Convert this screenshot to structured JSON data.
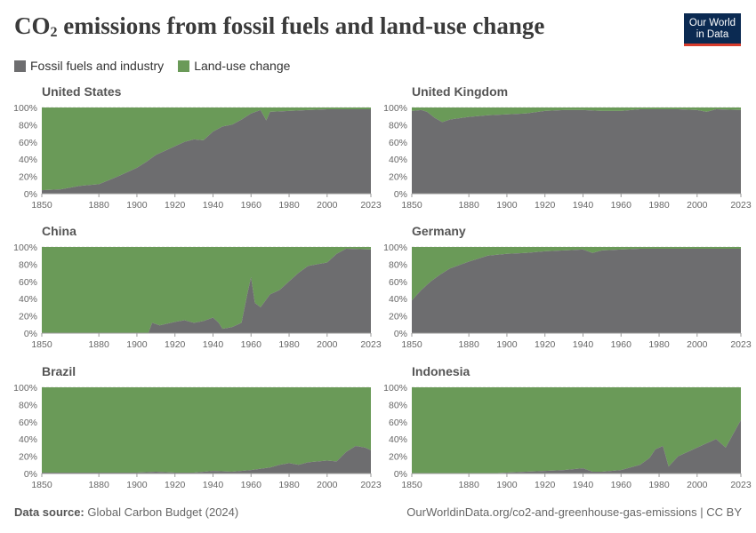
{
  "header": {
    "title_main": "CO",
    "title_sub": "2",
    "title_rest": " emissions from fossil fuels and land-use change",
    "logo_line1": "Our World",
    "logo_line2": "in Data"
  },
  "legend": [
    {
      "label": "Fossil fuels and industry",
      "color": "#6d6d6f"
    },
    {
      "label": "Land-use change",
      "color": "#6a9a58"
    }
  ],
  "footer": {
    "source_label": "Data source:",
    "source_text": "Global Carbon Budget (2024)",
    "url": "OurWorldinData.org/co2-and-greenhouse-gas-emissions | CC BY"
  },
  "chart_data": [
    {
      "type": "area",
      "title": "United States",
      "x": [
        1850,
        1860,
        1870,
        1875,
        1880,
        1890,
        1900,
        1905,
        1910,
        1915,
        1920,
        1925,
        1930,
        1935,
        1940,
        1945,
        1950,
        1955,
        1960,
        1965,
        1968,
        1970,
        1980,
        1990,
        2000,
        2010,
        2023
      ],
      "series": [
        {
          "name": "Fossil fuels and industry",
          "values": [
            4,
            5,
            9,
            10,
            11,
            20,
            30,
            37,
            45,
            50,
            55,
            60,
            63,
            62,
            72,
            78,
            80,
            86,
            93,
            97,
            85,
            95,
            96,
            97,
            98,
            98,
            98
          ]
        },
        {
          "name": "Land-use change",
          "values": [
            96,
            95,
            91,
            90,
            89,
            80,
            70,
            63,
            55,
            50,
            45,
            40,
            37,
            38,
            28,
            22,
            20,
            14,
            7,
            3,
            15,
            5,
            4,
            3,
            2,
            2,
            2
          ]
        }
      ],
      "x_ticks": [
        "1850",
        "1880",
        "1900",
        "1920",
        "1940",
        "1960",
        "1980",
        "2000",
        "2023"
      ],
      "y_ticks": [
        "0%",
        "20%",
        "40%",
        "60%",
        "80%",
        "100%"
      ],
      "ylim": [
        0,
        100
      ]
    },
    {
      "type": "area",
      "title": "United Kingdom",
      "x": [
        1850,
        1855,
        1858,
        1862,
        1866,
        1870,
        1880,
        1890,
        1900,
        1910,
        1920,
        1930,
        1940,
        1950,
        1960,
        1970,
        1980,
        1990,
        2000,
        2005,
        2010,
        2023
      ],
      "series": [
        {
          "name": "Fossil fuels and industry",
          "values": [
            96,
            97,
            95,
            88,
            83,
            86,
            89,
            91,
            92,
            93,
            96,
            97,
            97,
            96,
            96,
            98,
            98,
            98,
            97,
            95,
            98,
            97
          ]
        },
        {
          "name": "Land-use change",
          "values": [
            4,
            3,
            5,
            12,
            17,
            14,
            11,
            9,
            8,
            7,
            4,
            3,
            3,
            4,
            4,
            2,
            2,
            2,
            3,
            5,
            2,
            3
          ]
        }
      ],
      "x_ticks": [
        "1850",
        "1880",
        "1900",
        "1920",
        "1940",
        "1960",
        "1980",
        "2000",
        "2023"
      ],
      "y_ticks": [
        "0%",
        "20%",
        "40%",
        "60%",
        "80%",
        "100%"
      ],
      "ylim": [
        0,
        100
      ]
    },
    {
      "type": "area",
      "title": "China",
      "x": [
        1850,
        1900,
        1906,
        1908,
        1912,
        1920,
        1925,
        1930,
        1935,
        1940,
        1943,
        1945,
        1950,
        1955,
        1958,
        1960,
        1962,
        1965,
        1970,
        1975,
        1980,
        1985,
        1990,
        2000,
        2005,
        2010,
        2023
      ],
      "series": [
        {
          "name": "Fossil fuels and industry",
          "values": [
            0,
            0,
            0,
            12,
            9,
            13,
            15,
            12,
            14,
            18,
            12,
            5,
            7,
            12,
            45,
            65,
            35,
            30,
            45,
            50,
            60,
            70,
            78,
            82,
            92,
            98,
            97
          ]
        },
        {
          "name": "Land-use change",
          "values": [
            100,
            100,
            100,
            88,
            91,
            87,
            85,
            88,
            86,
            82,
            88,
            95,
            93,
            88,
            55,
            35,
            65,
            70,
            55,
            50,
            40,
            30,
            22,
            18,
            8,
            2,
            3
          ]
        }
      ],
      "x_ticks": [
        "1850",
        "1880",
        "1900",
        "1920",
        "1940",
        "1960",
        "1980",
        "2000",
        "2023"
      ],
      "y_ticks": [
        "0%",
        "20%",
        "40%",
        "60%",
        "80%",
        "100%"
      ],
      "ylim": [
        0,
        100
      ]
    },
    {
      "type": "area",
      "title": "Germany",
      "x": [
        1850,
        1855,
        1860,
        1865,
        1870,
        1880,
        1890,
        1900,
        1910,
        1920,
        1930,
        1940,
        1945,
        1950,
        1960,
        1970,
        1980,
        1990,
        2000,
        2010,
        2023
      ],
      "series": [
        {
          "name": "Fossil fuels and industry",
          "values": [
            38,
            50,
            60,
            68,
            75,
            83,
            90,
            92,
            93,
            95,
            96,
            97,
            93,
            96,
            97,
            98,
            98,
            98,
            98,
            98,
            98
          ]
        },
        {
          "name": "Land-use change",
          "values": [
            62,
            50,
            40,
            32,
            25,
            17,
            10,
            8,
            7,
            5,
            4,
            3,
            7,
            4,
            3,
            2,
            2,
            2,
            2,
            2,
            2
          ]
        }
      ],
      "x_ticks": [
        "1850",
        "1880",
        "1900",
        "1920",
        "1940",
        "1960",
        "1980",
        "2000",
        "2023"
      ],
      "y_ticks": [
        "0%",
        "20%",
        "40%",
        "60%",
        "80%",
        "100%"
      ],
      "ylim": [
        0,
        100
      ]
    },
    {
      "type": "area",
      "title": "Brazil",
      "x": [
        1850,
        1880,
        1900,
        1910,
        1920,
        1930,
        1940,
        1950,
        1960,
        1970,
        1975,
        1980,
        1985,
        1990,
        2000,
        2005,
        2010,
        2015,
        2020,
        2023
      ],
      "series": [
        {
          "name": "Fossil fuels and industry",
          "values": [
            1,
            1,
            1,
            2,
            1,
            1,
            3,
            2,
            4,
            7,
            10,
            12,
            10,
            13,
            15,
            14,
            25,
            32,
            30,
            27
          ]
        },
        {
          "name": "Land-use change",
          "values": [
            99,
            99,
            99,
            98,
            99,
            99,
            97,
            98,
            96,
            93,
            90,
            88,
            90,
            87,
            85,
            86,
            75,
            68,
            70,
            73
          ]
        }
      ],
      "x_ticks": [
        "1850",
        "1880",
        "1900",
        "1920",
        "1940",
        "1960",
        "1980",
        "2000",
        "2023"
      ],
      "y_ticks": [
        "0%",
        "20%",
        "40%",
        "60%",
        "80%",
        "100%"
      ],
      "ylim": [
        0,
        100
      ]
    },
    {
      "type": "area",
      "title": "Indonesia",
      "x": [
        1850,
        1890,
        1900,
        1910,
        1920,
        1930,
        1940,
        1945,
        1950,
        1960,
        1970,
        1975,
        1978,
        1982,
        1985,
        1990,
        1995,
        2000,
        2005,
        2010,
        2015,
        2020,
        2023
      ],
      "series": [
        {
          "name": "Fossil fuels and industry",
          "values": [
            0,
            0,
            1,
            2,
            3,
            4,
            6,
            2,
            2,
            4,
            10,
            18,
            28,
            32,
            8,
            20,
            25,
            30,
            35,
            40,
            30,
            50,
            62
          ]
        },
        {
          "name": "Land-use change",
          "values": [
            100,
            100,
            99,
            98,
            97,
            96,
            94,
            98,
            98,
            96,
            90,
            82,
            72,
            68,
            92,
            80,
            75,
            70,
            65,
            60,
            70,
            50,
            38
          ]
        }
      ],
      "x_ticks": [
        "1850",
        "1880",
        "1900",
        "1920",
        "1940",
        "1960",
        "1980",
        "2000",
        "2023"
      ],
      "y_ticks": [
        "0%",
        "20%",
        "40%",
        "60%",
        "80%",
        "100%"
      ],
      "ylim": [
        0,
        100
      ]
    }
  ]
}
